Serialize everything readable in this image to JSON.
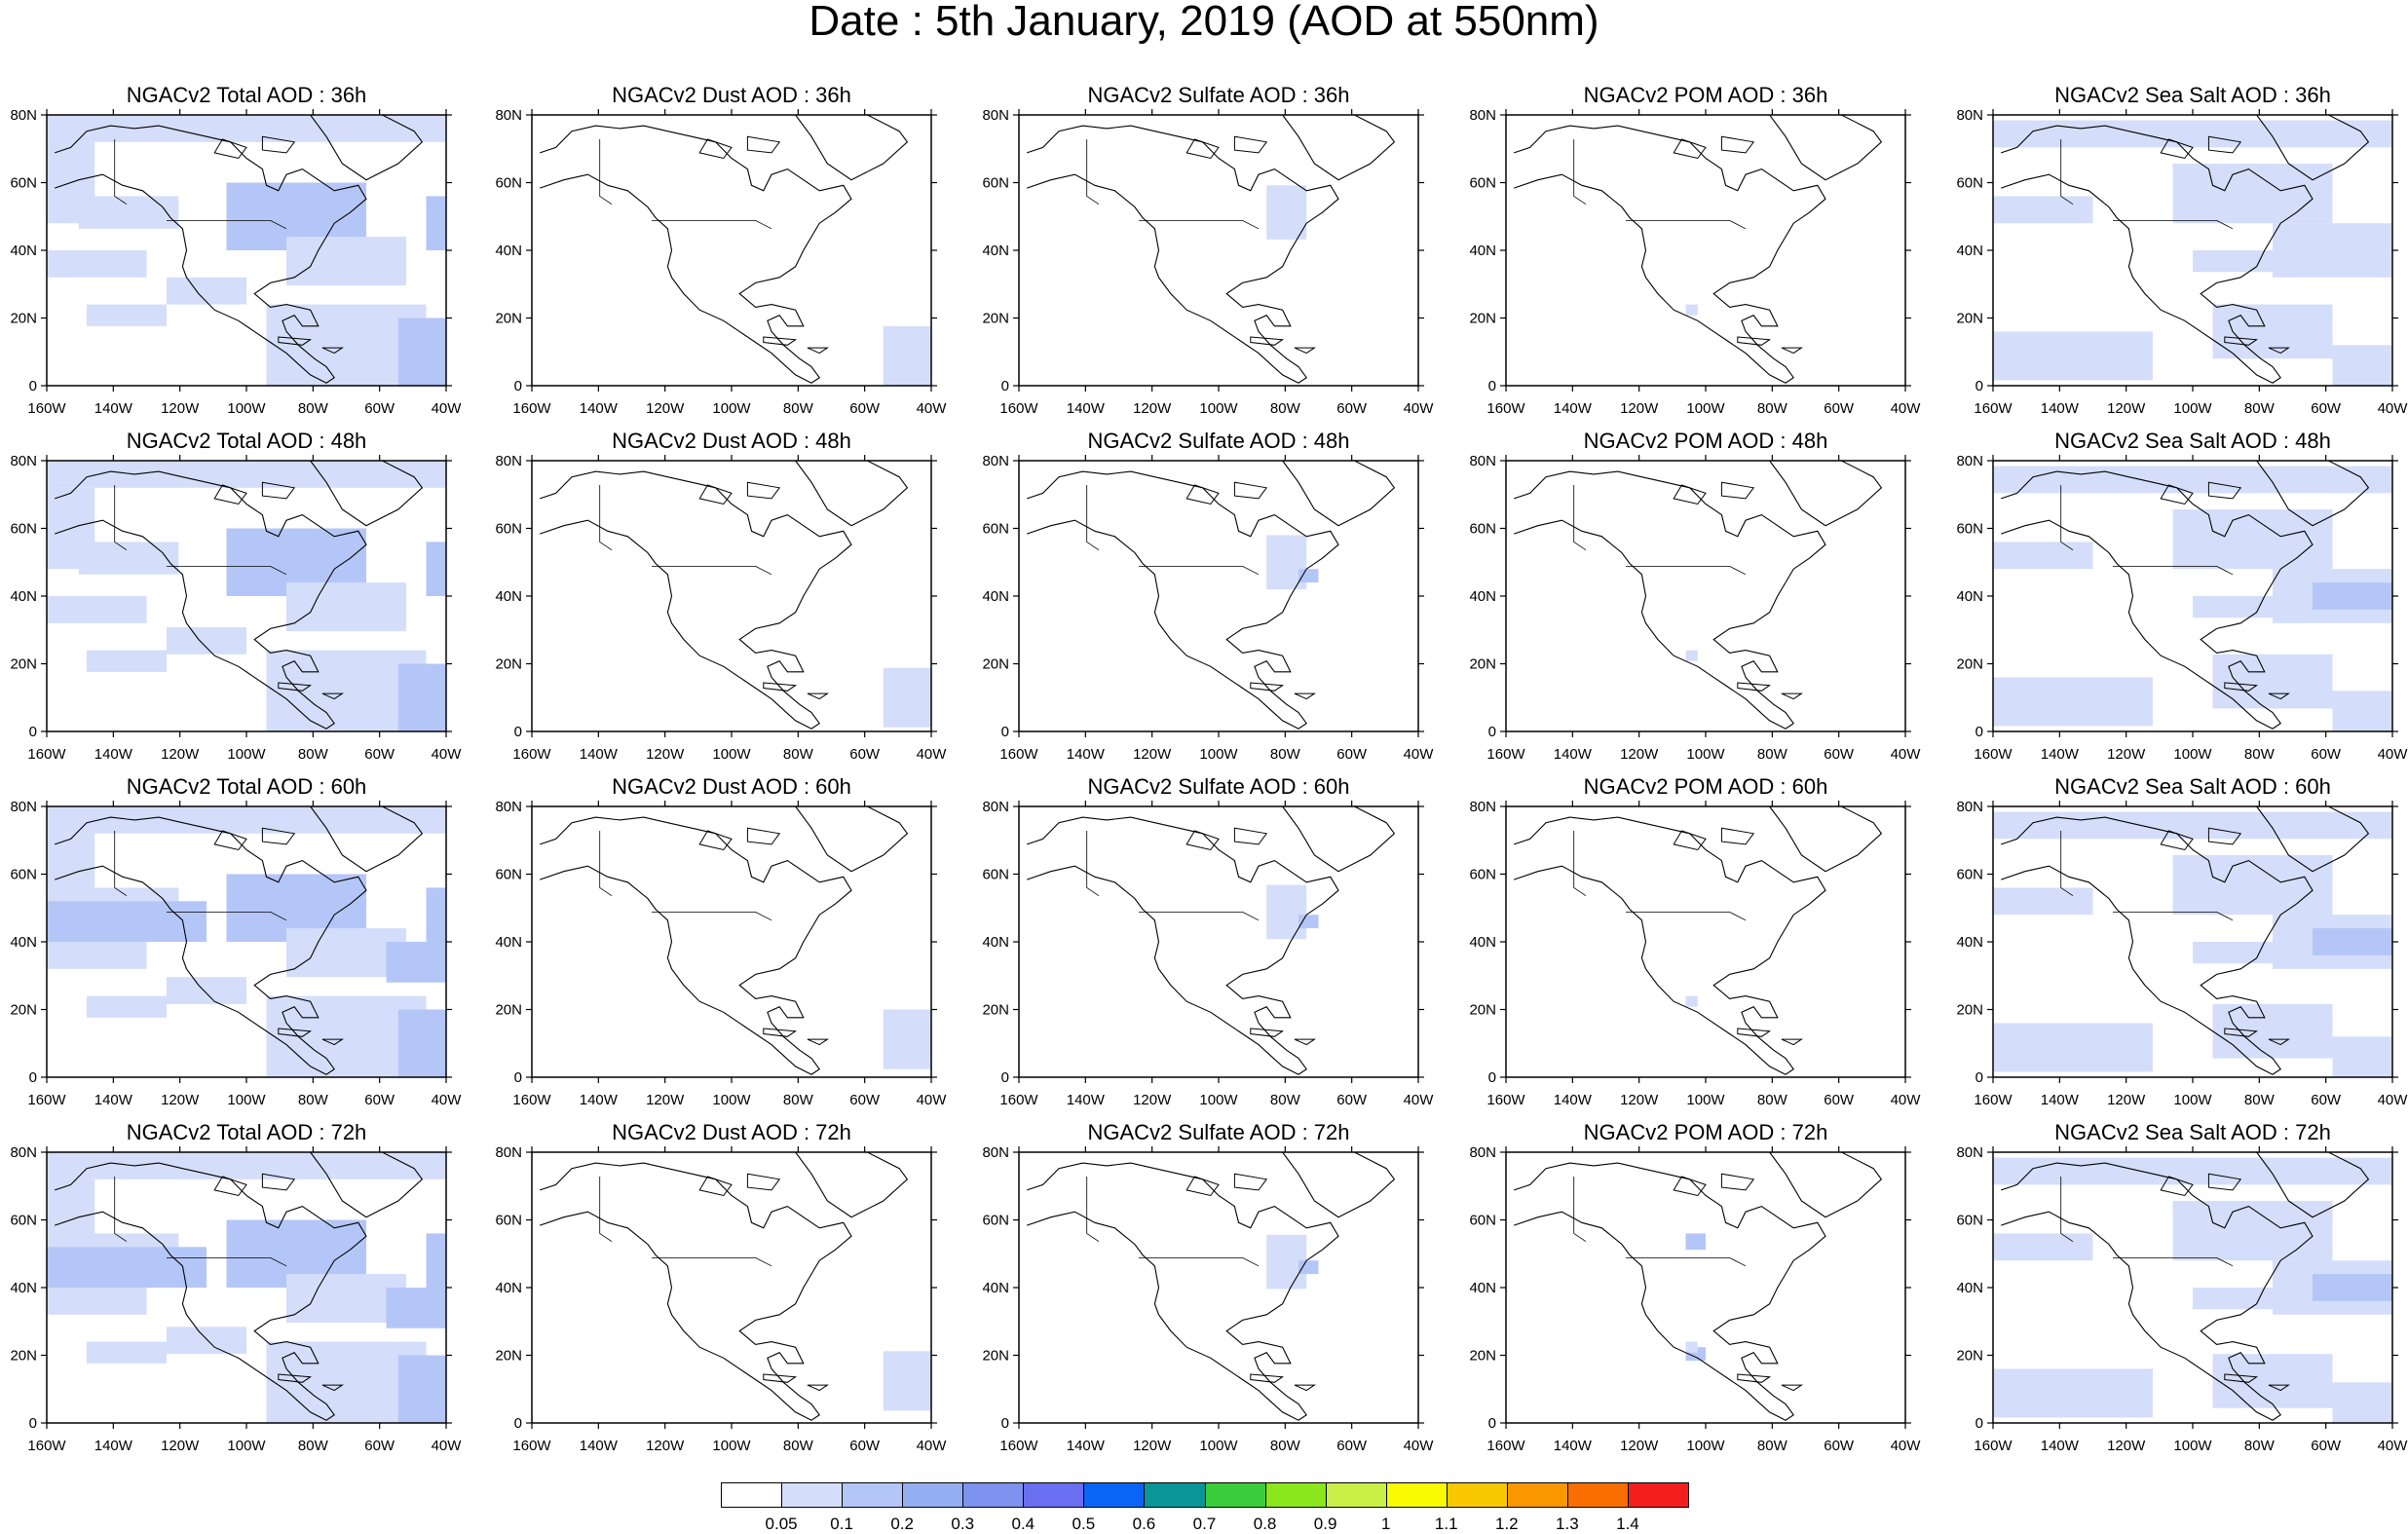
{
  "title": "Date : 5th January, 2019 (AOD at 550nm)",
  "lat_labels": [
    "80N",
    "60N",
    "40N",
    "20N",
    "0"
  ],
  "lon_labels": [
    "160W",
    "140W",
    "120W",
    "100W",
    "80W",
    "60W",
    "40W"
  ],
  "rows": [
    "36h",
    "48h",
    "60h",
    "72h"
  ],
  "columns": [
    {
      "key": "total",
      "label": "Total"
    },
    {
      "key": "dust",
      "label": "Dust"
    },
    {
      "key": "sulfate",
      "label": "Sulfate"
    },
    {
      "key": "pom",
      "label": "POM"
    },
    {
      "key": "seasalt",
      "label": "Sea Salt"
    }
  ],
  "panels": [
    [
      "NGACv2 Total AOD : 36h",
      "NGACv2 Dust AOD : 36h",
      "NGACv2 Sulfate AOD : 36h",
      "NGACv2 POM AOD : 36h",
      "NGACv2 Sea Salt AOD : 36h"
    ],
    [
      "NGACv2 Total AOD : 48h",
      "NGACv2 Dust AOD : 48h",
      "NGACv2 Sulfate AOD : 48h",
      "NGACv2 POM AOD : 48h",
      "NGACv2 Sea Salt AOD : 48h"
    ],
    [
      "NGACv2 Total AOD : 60h",
      "NGACv2 Dust AOD : 60h",
      "NGACv2 Sulfate AOD : 60h",
      "NGACv2 POM AOD : 60h",
      "NGACv2 Sea Salt AOD : 60h"
    ],
    [
      "NGACv2 Total AOD : 72h",
      "NGACv2 Dust AOD : 72h",
      "NGACv2 Sulfate AOD : 72h",
      "NGACv2 POM AOD : 72h",
      "NGACv2 Sea Salt  AOD : 72h"
    ]
  ],
  "colorbar": {
    "labels": [
      "0.05",
      "0.1",
      "0.2",
      "0.3",
      "0.4",
      "0.5",
      "0.6",
      "0.7",
      "0.8",
      "0.9",
      "1",
      "1.1",
      "1.2",
      "1.3",
      "1.4"
    ],
    "colors": [
      "#ffffff",
      "#d4defa",
      "#b4c6f7",
      "#94aef2",
      "#7e92f0",
      "#6a6ef0",
      "#0a64f5",
      "#0a9696",
      "#3ccd3c",
      "#8ce61e",
      "#c8f046",
      "#fafa00",
      "#fac800",
      "#fa9600",
      "#fa6e00",
      "#f51e1e"
    ]
  },
  "aod_colors": {
    "c1": "#d4defa",
    "c2": "#b4c6f7",
    "c3": "#94aef2"
  },
  "chart_data": {
    "type": "heatmap",
    "title": "Date : 5th January, 2019 (AOD at 550nm)",
    "x_range": [
      "160W",
      "40W"
    ],
    "y_range": [
      "0",
      "80N"
    ],
    "grid": false,
    "color_levels": [
      0.05,
      0.1,
      0.2,
      0.3,
      0.4,
      0.5,
      0.6,
      0.7,
      0.8,
      0.9,
      1,
      1.1,
      1.2,
      1.3,
      1.4
    ]
  }
}
